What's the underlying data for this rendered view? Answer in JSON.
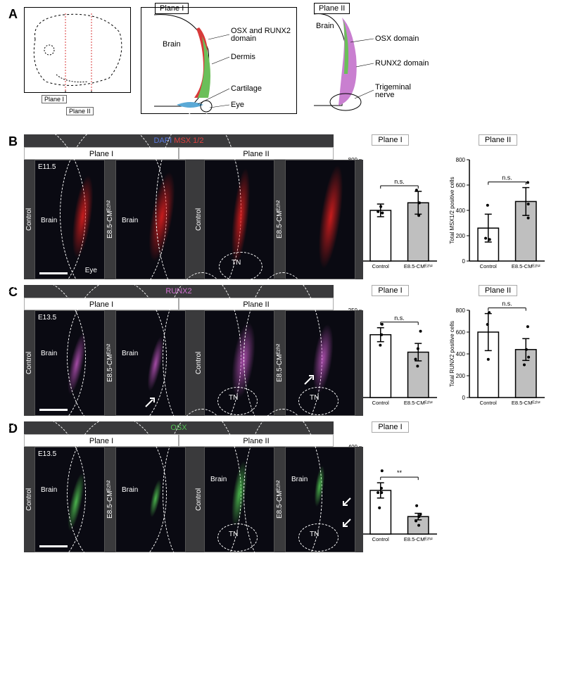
{
  "figure": {
    "panelA": {
      "label": "A",
      "head_schematic": {
        "plane_callout_1": "Plane I",
        "plane_callout_2": "Plane II"
      },
      "plane1": {
        "title": "Plane I",
        "region_brain": "Brain",
        "legend": {
          "osx_runx2": {
            "text": "OSX and RUNX2 domain",
            "color": "#d83a3a"
          },
          "dermis": {
            "text": "Dermis",
            "color": "#6bbf59"
          },
          "cartilage": {
            "text": "Cartilage",
            "color": "#5aa9d6"
          },
          "eye": {
            "text": "Eye",
            "color": "#000000"
          }
        }
      },
      "plane2": {
        "title": "Plane II",
        "region_brain": "Brain",
        "legend": {
          "osx": {
            "text": "OSX domain",
            "color": "#6bbf59"
          },
          "runx2": {
            "text": "RUNX2 domain",
            "color": "#c97fd0"
          },
          "trigeminal": {
            "text": "Trigeminal nerve",
            "color": "#000000"
          }
        }
      }
    },
    "panelB": {
      "label": "B",
      "stain_header": "DAPI MSX 1/2",
      "stain_colors": {
        "dapi": "#4a6bd6",
        "msx": "#d83a3a"
      },
      "stage": "E11.5",
      "left_group": "Control",
      "right_group": "E8.5-CMᴱᶻʰ²",
      "plane_headers": [
        "Plane I",
        "Plane II"
      ],
      "inside_labels": {
        "brain": "Brain",
        "eye": "Eye",
        "tn": "TN"
      },
      "charts": [
        {
          "title": "Plane I",
          "ylabel": "Total MSX1/2 positive cells",
          "ylim": [
            0,
            800
          ],
          "ytick_step": 200,
          "categories": [
            "Control",
            "E8.5-CMᴱᶻʰ²"
          ],
          "values": [
            400,
            460
          ],
          "errors": [
            50,
            90
          ],
          "bar_colors": [
            "#ffffff",
            "#bfbfbf"
          ],
          "sig": "n.s.",
          "points": [
            [
              380,
              430,
              390
            ],
            [
              360,
              560,
              460
            ]
          ]
        },
        {
          "title": "Plane II",
          "ylabel": "Total MSX1/2 positive cells",
          "ylim": [
            0,
            800
          ],
          "ytick_step": 200,
          "categories": [
            "Control",
            "E8.5-CMᴱᶻʰ²"
          ],
          "values": [
            260,
            470
          ],
          "errors": [
            110,
            110
          ],
          "bar_colors": [
            "#ffffff",
            "#bfbfbf"
          ],
          "sig": "n.s.",
          "points": [
            [
              170,
              440,
              180
            ],
            [
              340,
              620,
              450
            ]
          ]
        }
      ]
    },
    "panelC": {
      "label": "C",
      "stain_header": "RUNX2",
      "stain_color": "#d070d0",
      "stage": "E13.5",
      "left_group": "Control",
      "right_group": "E8.5-CMᴱᶻʰ²",
      "plane_headers": [
        "Plane I",
        "Plane II"
      ],
      "inside_labels": {
        "brain": "Brain",
        "tn": "TN"
      },
      "charts": [
        {
          "title": "Plane I",
          "ylabel": "Total RUNX2 positive cells",
          "ylim": [
            0,
            250
          ],
          "ytick_step": 50,
          "categories": [
            "Control",
            "E8.5-CMᴱᶻʰ²"
          ],
          "values": [
            180,
            130
          ],
          "errors": [
            20,
            25
          ],
          "bar_colors": [
            "#ffffff",
            "#bfbfbf"
          ],
          "sig": "n.s.",
          "points": [
            [
              150,
              210,
              180
            ],
            [
              190,
              90,
              110,
              140
            ]
          ]
        },
        {
          "title": "Plane II",
          "ylabel": "Total RUNX2 positive cells",
          "ylim": [
            0,
            800
          ],
          "ytick_step": 200,
          "categories": [
            "Control",
            "E8.5-CMᴱᶻʰ²"
          ],
          "values": [
            600,
            440
          ],
          "errors": [
            170,
            100
          ],
          "bar_colors": [
            "#ffffff",
            "#bfbfbf"
          ],
          "sig": "n.s.",
          "points": [
            [
              350,
              780,
              670
            ],
            [
              300,
              650,
              370,
              440
            ]
          ]
        }
      ]
    },
    "panelD": {
      "label": "D",
      "stain_header": "OSX",
      "stain_color": "#50c050",
      "stage": "E13.5",
      "left_group": "Control",
      "right_group": "E8.5-CMᴱᶻʰ²",
      "plane_headers": [
        "Plane I",
        "Plane II"
      ],
      "inside_labels": {
        "brain": "Brain",
        "tn": "TN"
      },
      "charts": [
        {
          "title": "Plane I",
          "ylabel": "Total OSX positive cells",
          "ylim": [
            0,
            400
          ],
          "ytick_step": 100,
          "categories": [
            "Control",
            "E8.5-CMᴱᶻʰ²"
          ],
          "values": [
            200,
            80
          ],
          "errors": [
            35,
            15
          ],
          "bar_colors": [
            "#ffffff",
            "#bfbfbf"
          ],
          "sig": "**",
          "points": [
            [
              120,
              290,
              190,
              210,
              190
            ],
            [
              40,
              130,
              60,
              90,
              80
            ]
          ]
        }
      ]
    }
  },
  "style": {
    "micro_bg": "#0a0a12",
    "dark_strip": "#3a3a3c",
    "border": "#888888",
    "axis_color": "#000000",
    "axis_fontsize": 9
  }
}
